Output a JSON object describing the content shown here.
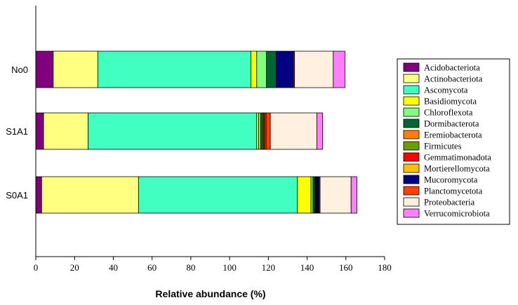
{
  "chart_data": {
    "type": "bar",
    "orientation": "horizontal",
    "stacked": true,
    "xlabel": "Relative abundance (%)",
    "ylabel": "",
    "xlim": [
      0,
      180
    ],
    "xticks": [
      0,
      20,
      40,
      60,
      80,
      100,
      120,
      140,
      160,
      180
    ],
    "grid": false,
    "legend_position": "right",
    "categories": [
      "No0",
      "S1A1",
      "S0A1"
    ],
    "series": [
      {
        "name": "Acidobacteriota",
        "color": "#800080",
        "values": [
          9,
          4,
          3
        ]
      },
      {
        "name": "Actinobacteriota",
        "color": "#FFFF80",
        "values": [
          23,
          23,
          50
        ]
      },
      {
        "name": "Ascomycota",
        "color": "#40FFC0",
        "values": [
          79,
          87,
          82
        ]
      },
      {
        "name": "Basidiomycota",
        "color": "#FFFF00",
        "values": [
          3,
          1,
          7
        ]
      },
      {
        "name": "Chloroflexota",
        "color": "#80FF80",
        "values": [
          5,
          1,
          1
        ]
      },
      {
        "name": "Dormibacterota",
        "color": "#006633",
        "values": [
          5,
          1,
          1
        ]
      },
      {
        "name": "Eremiobacterota",
        "color": "#FF8000",
        "values": [
          0,
          0.5,
          0.3
        ]
      },
      {
        "name": "Firmicutes",
        "color": "#66A000",
        "values": [
          0,
          0.5,
          0.3
        ]
      },
      {
        "name": "Gemmatimonadota",
        "color": "#FF0000",
        "values": [
          0,
          1,
          0.3
        ]
      },
      {
        "name": "Mortierellomycota",
        "color": "#FFC000",
        "values": [
          0,
          0,
          0.3
        ]
      },
      {
        "name": "Mucoromycota",
        "color": "#000080",
        "values": [
          9,
          0,
          1
        ]
      },
      {
        "name": "Planctomycetota",
        "color": "#FF4000",
        "values": [
          0.5,
          2,
          0.5
        ]
      },
      {
        "name": "Proteobacteria",
        "color": "#FFF0E0",
        "values": [
          20,
          24,
          16
        ]
      },
      {
        "name": "Verrucomicrobiota",
        "color": "#FF80FF",
        "values": [
          6,
          3,
          3
        ]
      }
    ]
  }
}
